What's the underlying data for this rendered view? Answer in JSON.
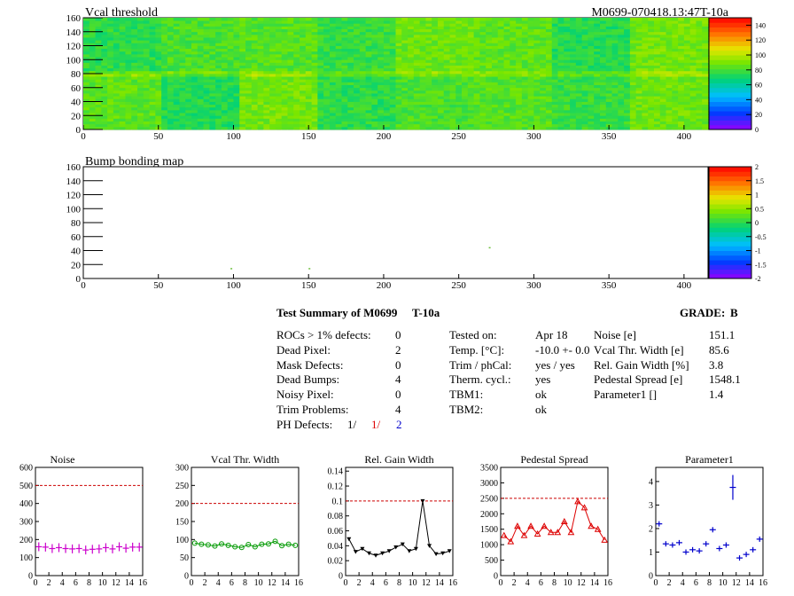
{
  "header": {
    "title": "Vcal threshold",
    "module_label": "M0699-070418.13:47T-10a"
  },
  "maps": [
    {
      "title": "Vcal threshold",
      "xlim": [
        0,
        416
      ],
      "ylim": [
        0,
        160
      ],
      "x_ticks": [
        "0",
        "50",
        "100",
        "150",
        "200",
        "250",
        "300",
        "350",
        "400"
      ],
      "y_ticks": [
        "0",
        "20",
        "40",
        "60",
        "80",
        "100",
        "120",
        "140",
        "160"
      ],
      "palette_labels": [
        "0",
        "20",
        "40",
        "60",
        "80",
        "100",
        "120",
        "140"
      ]
    },
    {
      "title": "Bump bonding map",
      "xlim": [
        0,
        416
      ],
      "ylim": [
        0,
        160
      ],
      "x_ticks": [
        "0",
        "50",
        "100",
        "150",
        "200",
        "250",
        "300",
        "350",
        "400"
      ],
      "y_ticks": [
        "0",
        "20",
        "40",
        "60",
        "80",
        "100",
        "120",
        "140",
        "160"
      ],
      "palette_labels": [
        "-2",
        "-1.5",
        "-1",
        "-0.5",
        "0",
        "0.5",
        "1",
        "1.5",
        "2"
      ]
    }
  ],
  "summary": {
    "title": "Test Summary of M0699",
    "temp_label": "T-10a",
    "grade_label": "GRADE:",
    "grade": "B",
    "defects": [
      {
        "label": "ROCs > 1% defects:",
        "value": "0"
      },
      {
        "label": "Dead Pixel:",
        "value": "2"
      },
      {
        "label": "Mask Defects:",
        "value": "0"
      },
      {
        "label": "Dead Bumps:",
        "value": "4"
      },
      {
        "label": "Noisy Pixel:",
        "value": "0"
      },
      {
        "label": "Trim Problems:",
        "value": "4"
      }
    ],
    "ph_defects_label": "PH Defects:",
    "ph_defects": [
      "1/",
      "1/",
      "2"
    ],
    "conditions": [
      {
        "label": "Tested on:",
        "value": "Apr 18"
      },
      {
        "label": "Temp. [°C]:",
        "value": "-10.0 +- 0.0"
      },
      {
        "label": "Trim / phCal:",
        "value": "yes / yes"
      },
      {
        "label": "Therm. cycl.:",
        "value": "yes"
      },
      {
        "label": "TBM1:",
        "value": "ok"
      },
      {
        "label": "TBM2:",
        "value": "ok"
      }
    ],
    "results": [
      {
        "label": "Noise [e]",
        "value": "151.1"
      },
      {
        "label": "Vcal Thr. Width [e]",
        "value": "85.6"
      },
      {
        "label": "Rel. Gain Width [%]",
        "value": "3.8"
      },
      {
        "label": "Pedestal Spread [e]",
        "value": "1548.1"
      },
      {
        "label": "Parameter1 []",
        "value": "1.4"
      }
    ]
  },
  "chart_data": [
    {
      "type": "heatmap",
      "title": "Vcal threshold",
      "xlim": [
        0,
        416
      ],
      "ylim": [
        0,
        160
      ],
      "zlim": [
        0,
        150
      ]
    },
    {
      "type": "heatmap",
      "title": "Bump bonding map",
      "xlim": [
        0,
        416
      ],
      "ylim": [
        0,
        160
      ],
      "zlim": [
        -2,
        2
      ]
    },
    {
      "type": "scatter",
      "title": "Noise",
      "x": [
        0,
        1,
        2,
        3,
        4,
        5,
        6,
        7,
        8,
        9,
        10,
        11,
        12,
        13,
        14,
        15
      ],
      "values": [
        160,
        158,
        150,
        155,
        150,
        148,
        150,
        142,
        146,
        148,
        155,
        148,
        160,
        152,
        158,
        158
      ],
      "ylim": [
        0,
        600
      ],
      "xlim": [
        0,
        16
      ],
      "threshold": 500,
      "color": "#cc00cc",
      "y_ticks": [
        "0",
        "100",
        "200",
        "300",
        "400",
        "500",
        "600"
      ],
      "x_ticks": [
        "0",
        "2",
        "4",
        "6",
        "8",
        "10",
        "12",
        "14",
        "16"
      ]
    },
    {
      "type": "line",
      "title": "Vcal Thr. Width",
      "x": [
        0,
        1,
        2,
        3,
        4,
        5,
        6,
        7,
        8,
        9,
        10,
        11,
        12,
        13,
        14,
        15
      ],
      "values": [
        90,
        87,
        85,
        82,
        88,
        84,
        80,
        78,
        86,
        80,
        87,
        88,
        95,
        83,
        87,
        84
      ],
      "ylim": [
        0,
        300
      ],
      "xlim": [
        0,
        16
      ],
      "threshold": 200,
      "color": "#009900",
      "y_ticks": [
        "0",
        "50",
        "100",
        "150",
        "200",
        "250",
        "300"
      ],
      "x_ticks": [
        "0",
        "2",
        "4",
        "6",
        "8",
        "10",
        "12",
        "14",
        "16"
      ]
    },
    {
      "type": "line",
      "title": "Rel. Gain Width",
      "x": [
        0,
        1,
        2,
        3,
        4,
        5,
        6,
        7,
        8,
        9,
        10,
        11,
        12,
        13,
        14,
        15
      ],
      "values": [
        0.049,
        0.032,
        0.036,
        0.03,
        0.027,
        0.03,
        0.033,
        0.038,
        0.042,
        0.033,
        0.036,
        0.1,
        0.04,
        0.029,
        0.03,
        0.033
      ],
      "ylim": [
        0,
        0.145
      ],
      "xlim": [
        0,
        16
      ],
      "threshold": 0.1,
      "color": "#000000",
      "y_ticks": [
        "0",
        "0.02",
        "0.04",
        "0.06",
        "0.08",
        "0.1",
        "0.12",
        "0.14"
      ],
      "x_ticks": [
        "0",
        "2",
        "4",
        "6",
        "8",
        "10",
        "12",
        "14",
        "16"
      ]
    },
    {
      "type": "line",
      "title": "Pedestal Spread",
      "x": [
        0,
        1,
        2,
        3,
        4,
        5,
        6,
        7,
        8,
        9,
        10,
        11,
        12,
        13,
        14,
        15
      ],
      "values": [
        1300,
        1100,
        1600,
        1300,
        1600,
        1350,
        1600,
        1400,
        1400,
        1750,
        1400,
        2400,
        2200,
        1600,
        1500,
        1150
      ],
      "ylim": [
        0,
        3500
      ],
      "xlim": [
        0,
        16
      ],
      "threshold": 2500,
      "color": "#dd0000",
      "y_ticks": [
        "0",
        "500",
        "1000",
        "1500",
        "2000",
        "2500",
        "3000",
        "3500"
      ],
      "x_ticks": [
        "0",
        "2",
        "4",
        "6",
        "8",
        "10",
        "12",
        "14",
        "16"
      ]
    },
    {
      "type": "scatter",
      "title": "Parameter1",
      "x": [
        0,
        1,
        2,
        3,
        4,
        5,
        6,
        7,
        8,
        9,
        10,
        11,
        12,
        13,
        14,
        15
      ],
      "values": [
        2.2,
        1.35,
        1.3,
        1.4,
        1.0,
        1.1,
        1.05,
        1.35,
        1.95,
        1.15,
        1.3,
        3.75,
        0.75,
        0.9,
        1.1,
        1.55
      ],
      "ylim": [
        0,
        4.6
      ],
      "xlim": [
        0,
        16
      ],
      "color": "#0000cc",
      "y_ticks": [
        "0",
        "1",
        "2",
        "3",
        "4"
      ],
      "x_ticks": [
        "0",
        "2",
        "4",
        "6",
        "8",
        "10",
        "12",
        "14",
        "16"
      ]
    }
  ]
}
